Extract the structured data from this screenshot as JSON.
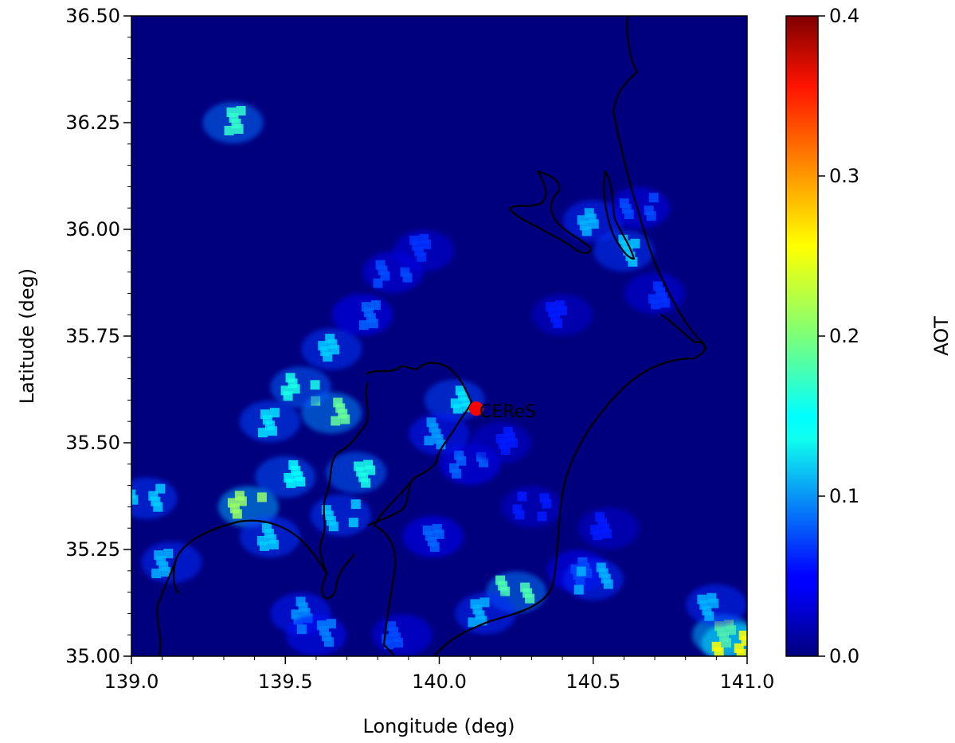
{
  "chart_data": {
    "type": "heatmap",
    "title": "",
    "xlabel": "Longitude (deg)",
    "ylabel": "Latitude (deg)",
    "xlim": [
      139.0,
      141.0
    ],
    "ylim": [
      35.0,
      36.5
    ],
    "x_ticks": [
      {
        "value": 139.0,
        "label": "139.0"
      },
      {
        "value": 139.5,
        "label": "139.5"
      },
      {
        "value": 140.0,
        "label": "140.0"
      },
      {
        "value": 140.5,
        "label": "140.5"
      },
      {
        "value": 141.0,
        "label": "141.0"
      }
    ],
    "y_ticks": [
      {
        "value": 35.0,
        "label": "35.00"
      },
      {
        "value": 35.25,
        "label": "35.25"
      },
      {
        "value": 35.5,
        "label": "35.50"
      },
      {
        "value": 35.75,
        "label": "35.75"
      },
      {
        "value": 36.0,
        "label": "36.00"
      },
      {
        "value": 36.25,
        "label": "36.25"
      },
      {
        "value": 36.5,
        "label": "36.50"
      }
    ],
    "grid": false,
    "colormap": "jet",
    "colorbar": {
      "label": "AOT",
      "range": [
        0.0,
        0.4
      ],
      "ticks": [
        {
          "value": 0.0,
          "label": "0.0"
        },
        {
          "value": 0.1,
          "label": "0.1"
        },
        {
          "value": 0.2,
          "label": "0.2"
        },
        {
          "value": 0.3,
          "label": "0.3"
        },
        {
          "value": 0.4,
          "label": "0.4"
        }
      ]
    },
    "background_value": 0.0,
    "aot_features": [
      {
        "lon": 139.65,
        "lat": 35.57,
        "value": 0.19
      },
      {
        "lon": 139.55,
        "lat": 35.63,
        "value": 0.16
      },
      {
        "lon": 139.45,
        "lat": 35.55,
        "value": 0.14
      },
      {
        "lon": 139.5,
        "lat": 35.42,
        "value": 0.15
      },
      {
        "lon": 139.38,
        "lat": 35.35,
        "value": 0.21
      },
      {
        "lon": 139.45,
        "lat": 35.28,
        "value": 0.13
      },
      {
        "lon": 139.73,
        "lat": 35.43,
        "value": 0.16
      },
      {
        "lon": 139.68,
        "lat": 35.33,
        "value": 0.13
      },
      {
        "lon": 139.65,
        "lat": 35.72,
        "value": 0.13
      },
      {
        "lon": 139.75,
        "lat": 35.8,
        "value": 0.09
      },
      {
        "lon": 139.85,
        "lat": 35.9,
        "value": 0.08
      },
      {
        "lon": 139.95,
        "lat": 35.95,
        "value": 0.07
      },
      {
        "lon": 140.05,
        "lat": 35.6,
        "value": 0.14
      },
      {
        "lon": 140.1,
        "lat": 35.45,
        "value": 0.09
      },
      {
        "lon": 140.0,
        "lat": 35.52,
        "value": 0.11
      },
      {
        "lon": 140.2,
        "lat": 35.5,
        "value": 0.06
      },
      {
        "lon": 140.3,
        "lat": 35.35,
        "value": 0.06
      },
      {
        "lon": 140.5,
        "lat": 36.02,
        "value": 0.12
      },
      {
        "lon": 140.6,
        "lat": 35.95,
        "value": 0.13
      },
      {
        "lon": 140.65,
        "lat": 36.05,
        "value": 0.08
      },
      {
        "lon": 140.4,
        "lat": 35.8,
        "value": 0.06
      },
      {
        "lon": 140.7,
        "lat": 35.85,
        "value": 0.07
      },
      {
        "lon": 140.25,
        "lat": 35.15,
        "value": 0.18
      },
      {
        "lon": 140.15,
        "lat": 35.1,
        "value": 0.12
      },
      {
        "lon": 140.45,
        "lat": 35.2,
        "value": 0.09
      },
      {
        "lon": 140.5,
        "lat": 35.18,
        "value": 0.12
      },
      {
        "lon": 140.55,
        "lat": 35.3,
        "value": 0.06
      },
      {
        "lon": 140.92,
        "lat": 35.05,
        "value": 0.22
      },
      {
        "lon": 140.95,
        "lat": 35.03,
        "value": 0.25
      },
      {
        "lon": 140.9,
        "lat": 35.12,
        "value": 0.12
      },
      {
        "lon": 139.33,
        "lat": 36.25,
        "value": 0.17
      },
      {
        "lon": 139.05,
        "lat": 35.37,
        "value": 0.13
      },
      {
        "lon": 139.13,
        "lat": 35.22,
        "value": 0.12
      },
      {
        "lon": 139.55,
        "lat": 35.1,
        "value": 0.11
      },
      {
        "lon": 139.6,
        "lat": 35.05,
        "value": 0.1
      },
      {
        "lon": 139.88,
        "lat": 35.05,
        "value": 0.08
      },
      {
        "lon": 139.98,
        "lat": 35.28,
        "value": 0.09
      }
    ],
    "annotations": [
      {
        "text": "CEReS",
        "lon": 140.12,
        "lat": 35.58,
        "marker_color": "#ff0000"
      }
    ]
  }
}
